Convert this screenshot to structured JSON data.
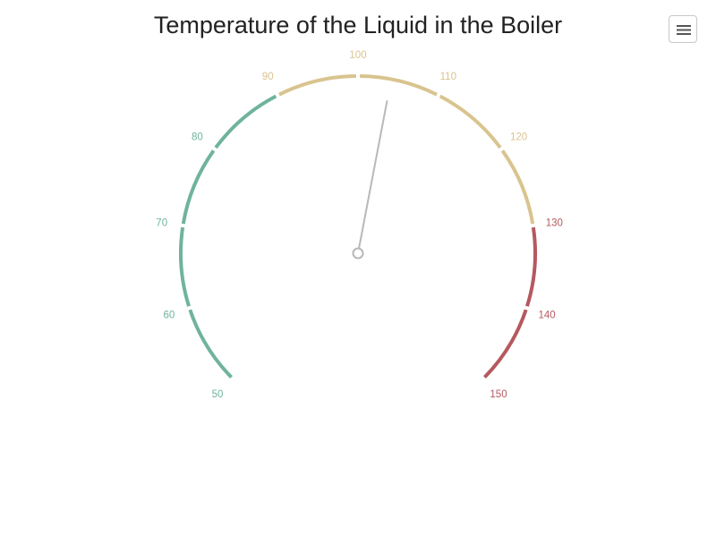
{
  "chart_data": {
    "type": "gauge",
    "title": "Temperature of the Liquid in the Boiler",
    "min": 50,
    "max": 150,
    "value": 104,
    "ticks": [
      50,
      60,
      70,
      80,
      90,
      100,
      110,
      120,
      130,
      140,
      150
    ],
    "bands": [
      {
        "from": 50,
        "to": 90,
        "color": "#6fb39e"
      },
      {
        "from": 90,
        "to": 130,
        "color": "#d9c48f"
      },
      {
        "from": 130,
        "to": 150,
        "color": "#b5595f"
      }
    ],
    "needle_color": "#b8b8b8"
  },
  "menu": {
    "icon": "hamburger-menu-icon"
  }
}
